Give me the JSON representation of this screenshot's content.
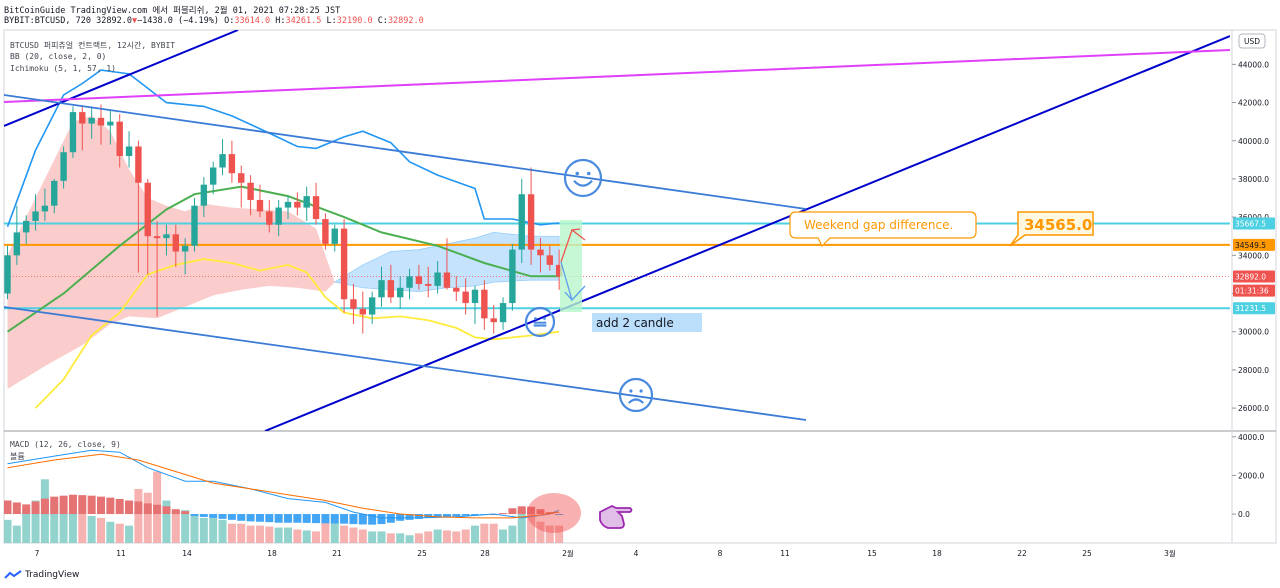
{
  "header": {
    "line1": "BitCoinGuide TradingView.com 에서 퍼블리쉬, 2월 01, 2021 07:28:25 JST",
    "line2_prefix": "BYBIT:BTCUSD, 720 32892.0",
    "line2_arrow": "▼",
    "line2_change": "−1438.0 (−4.19%)",
    "ohlc": [
      {
        "k": "O:",
        "v": "33614.0"
      },
      {
        "k": "H:",
        "v": "34261.5"
      },
      {
        "k": "L:",
        "v": "32190.0"
      },
      {
        "k": "C:",
        "v": "32892.0"
      }
    ]
  },
  "legend": {
    "symbol": "BTCUSD 퍼피츄얼 컨트랙트, 12시간, BYBIT",
    "bb": "BB (20, close, 2, 0)",
    "ichimoku": "Ichimoku (5, 1, 57, 1)",
    "macd": "MACD (12, 26, close, 9)",
    "volume": "볼륨"
  },
  "currency_button": "USD",
  "footer_brand": "TradingView",
  "annotations": {
    "weekend_gap": "Weekend gap difference.",
    "gap_value": "34565.0",
    "add_candle": "add 2 candle"
  },
  "colors": {
    "up": "#26a69a",
    "down": "#ef5350",
    "bb_basis": "#4caf50",
    "bb_upper_lower": "#2196f3",
    "ichimoku_lagging": "#ffeb3b",
    "cloud_red": "#f8bbbb",
    "cloud_blue": "#bbdefb",
    "trend_line": "#0000cc",
    "channel_line": "#3a7bd5",
    "magenta_line": "#e040fb",
    "level_cyan": "#4dd0e1",
    "level_orange": "#ff9800",
    "smiley": "#4a8bdf",
    "price_label": "#ef5350"
  },
  "chart_data": {
    "type": "candlestick",
    "symbol": "BYBIT:BTCUSD",
    "interval": "720",
    "price_axis": {
      "ticks": [
        "44000.0",
        "42000.0",
        "40000.0",
        "38000.0",
        "36000.0",
        "34000.0",
        "32000.0",
        "30000.0",
        "28000.0",
        "26000.0"
      ],
      "range": [
        24800,
        45800
      ]
    },
    "time_axis": {
      "ticks": [
        "7",
        "11",
        "14",
        "18",
        "21",
        "25",
        "28",
        "2월",
        "4",
        "8",
        "11",
        "15",
        "18",
        "22",
        "25",
        "3월"
      ]
    },
    "price_labels": [
      {
        "text": "35667.5",
        "value": 35667.5,
        "kind": "cyan"
      },
      {
        "text": "34549.5",
        "value": 34549.5,
        "kind": "orange"
      },
      {
        "text": "32892.0",
        "value": 32892.0,
        "kind": "last"
      },
      {
        "text": "01:31:36",
        "value": 32150,
        "kind": "countdown"
      },
      {
        "text": "31231.5",
        "value": 31231.5,
        "kind": "cyan"
      }
    ],
    "horizontal_levels": [
      {
        "value": 35667.5,
        "color": "cyan"
      },
      {
        "value": 34549.5,
        "color": "orange"
      },
      {
        "value": 31231.5,
        "color": "cyan"
      }
    ],
    "candles": [
      {
        "o": 32000,
        "h": 34500,
        "l": 31700,
        "c": 34000
      },
      {
        "o": 34000,
        "h": 36600,
        "l": 33500,
        "c": 35200
      },
      {
        "o": 35200,
        "h": 36100,
        "l": 34600,
        "c": 35800
      },
      {
        "o": 35800,
        "h": 37200,
        "l": 35300,
        "c": 36300
      },
      {
        "o": 36300,
        "h": 37500,
        "l": 35800,
        "c": 36600
      },
      {
        "o": 36600,
        "h": 38000,
        "l": 36200,
        "c": 37900
      },
      {
        "o": 37900,
        "h": 39700,
        "l": 37500,
        "c": 39400
      },
      {
        "o": 39400,
        "h": 41800,
        "l": 39100,
        "c": 41500
      },
      {
        "o": 41500,
        "h": 41800,
        "l": 39500,
        "c": 40900
      },
      {
        "o": 40900,
        "h": 41800,
        "l": 40100,
        "c": 41200
      },
      {
        "o": 41200,
        "h": 41900,
        "l": 39800,
        "c": 40800
      },
      {
        "o": 40800,
        "h": 41600,
        "l": 39800,
        "c": 41000
      },
      {
        "o": 41000,
        "h": 41400,
        "l": 38600,
        "c": 39200
      },
      {
        "o": 39200,
        "h": 40500,
        "l": 38600,
        "c": 39700
      },
      {
        "o": 39700,
        "h": 40000,
        "l": 33100,
        "c": 37800
      },
      {
        "o": 37800,
        "h": 38000,
        "l": 33000,
        "c": 35000
      },
      {
        "o": 35000,
        "h": 35800,
        "l": 30800,
        "c": 34900
      },
      {
        "o": 34900,
        "h": 35600,
        "l": 34000,
        "c": 35100
      },
      {
        "o": 35100,
        "h": 35600,
        "l": 33400,
        "c": 34200
      },
      {
        "o": 34200,
        "h": 34900,
        "l": 33000,
        "c": 34500
      },
      {
        "o": 34500,
        "h": 37000,
        "l": 34200,
        "c": 36600
      },
      {
        "o": 36600,
        "h": 38100,
        "l": 36000,
        "c": 37700
      },
      {
        "o": 37700,
        "h": 38900,
        "l": 37200,
        "c": 38600
      },
      {
        "o": 38600,
        "h": 40100,
        "l": 38200,
        "c": 39300
      },
      {
        "o": 39300,
        "h": 40000,
        "l": 37800,
        "c": 38300
      },
      {
        "o": 38300,
        "h": 38700,
        "l": 36500,
        "c": 37800
      },
      {
        "o": 37800,
        "h": 38200,
        "l": 36100,
        "c": 36900
      },
      {
        "o": 36900,
        "h": 37700,
        "l": 36000,
        "c": 36300
      },
      {
        "o": 36300,
        "h": 36900,
        "l": 35200,
        "c": 35600
      },
      {
        "o": 35600,
        "h": 36900,
        "l": 35000,
        "c": 36500
      },
      {
        "o": 36500,
        "h": 37100,
        "l": 35900,
        "c": 36800
      },
      {
        "o": 36800,
        "h": 37300,
        "l": 36100,
        "c": 36500
      },
      {
        "o": 36500,
        "h": 37600,
        "l": 35800,
        "c": 37100
      },
      {
        "o": 37100,
        "h": 37800,
        "l": 35600,
        "c": 35900
      },
      {
        "o": 35900,
        "h": 36200,
        "l": 34300,
        "c": 34600
      },
      {
        "o": 34600,
        "h": 35600,
        "l": 34200,
        "c": 35400
      },
      {
        "o": 35400,
        "h": 35900,
        "l": 31000,
        "c": 31700
      },
      {
        "o": 31700,
        "h": 32500,
        "l": 30400,
        "c": 31200
      },
      {
        "o": 31200,
        "h": 32100,
        "l": 29900,
        "c": 30900
      },
      {
        "o": 30900,
        "h": 32100,
        "l": 30400,
        "c": 31800
      },
      {
        "o": 31800,
        "h": 33400,
        "l": 31300,
        "c": 32700
      },
      {
        "o": 32700,
        "h": 33500,
        "l": 31500,
        "c": 31800
      },
      {
        "o": 31800,
        "h": 32900,
        "l": 31200,
        "c": 32300
      },
      {
        "o": 32300,
        "h": 33300,
        "l": 31700,
        "c": 32900
      },
      {
        "o": 32900,
        "h": 33500,
        "l": 32200,
        "c": 32500
      },
      {
        "o": 32500,
        "h": 33400,
        "l": 31800,
        "c": 32400
      },
      {
        "o": 32400,
        "h": 33700,
        "l": 32000,
        "c": 33100
      },
      {
        "o": 33100,
        "h": 34900,
        "l": 32200,
        "c": 32300
      },
      {
        "o": 32300,
        "h": 32900,
        "l": 31600,
        "c": 32100
      },
      {
        "o": 32100,
        "h": 32800,
        "l": 30900,
        "c": 31500
      },
      {
        "o": 31500,
        "h": 32400,
        "l": 30400,
        "c": 32200
      },
      {
        "o": 32200,
        "h": 32700,
        "l": 30100,
        "c": 30700
      },
      {
        "o": 30700,
        "h": 31400,
        "l": 29900,
        "c": 30500
      },
      {
        "o": 30500,
        "h": 31800,
        "l": 30100,
        "c": 31500
      },
      {
        "o": 31500,
        "h": 34600,
        "l": 31100,
        "c": 34300
      },
      {
        "o": 34300,
        "h": 38000,
        "l": 33600,
        "c": 37200
      },
      {
        "o": 37200,
        "h": 38600,
        "l": 33500,
        "c": 34300
      },
      {
        "o": 34300,
        "h": 34900,
        "l": 33100,
        "c": 34000
      },
      {
        "o": 34000,
        "h": 34500,
        "l": 33200,
        "c": 33500
      },
      {
        "o": 33500,
        "h": 34300,
        "l": 32190,
        "c": 32892
      }
    ],
    "lines": {
      "bb_basis": [
        [
          0,
          30000
        ],
        [
          6,
          32000
        ],
        [
          12,
          34500
        ],
        [
          17,
          36400
        ],
        [
          20,
          37200
        ],
        [
          25,
          37600
        ],
        [
          30,
          37100
        ],
        [
          36,
          36000
        ],
        [
          40,
          35200
        ],
        [
          46,
          34500
        ],
        [
          51,
          33600
        ],
        [
          56,
          32900
        ],
        [
          59,
          32900
        ]
      ],
      "bb_upper": [
        [
          0,
          35500
        ],
        [
          3,
          39500
        ],
        [
          6,
          42400
        ],
        [
          8,
          43000
        ],
        [
          10,
          43700
        ],
        [
          13,
          43500
        ],
        [
          17,
          42000
        ],
        [
          21,
          41800
        ],
        [
          24,
          41300
        ],
        [
          28,
          40400
        ],
        [
          31,
          39700
        ],
        [
          33,
          39600
        ],
        [
          36,
          40200
        ],
        [
          38,
          40500
        ],
        [
          41,
          39900
        ],
        [
          43,
          38900
        ],
        [
          46,
          38200
        ],
        [
          50,
          37500
        ],
        [
          51,
          35900
        ],
        [
          54,
          35900
        ],
        [
          57,
          35600
        ],
        [
          59,
          35700
        ]
      ],
      "ichimoku_lagging": [
        [
          3,
          26000
        ],
        [
          6,
          27500
        ],
        [
          9,
          29800
        ],
        [
          12,
          31000
        ],
        [
          15,
          33000
        ],
        [
          18,
          33500
        ],
        [
          21,
          33800
        ],
        [
          24,
          33600
        ],
        [
          27,
          33200
        ],
        [
          30,
          33500
        ],
        [
          32,
          33100
        ],
        [
          34,
          31800
        ],
        [
          36,
          31000
        ],
        [
          39,
          30700
        ],
        [
          42,
          30800
        ],
        [
          45,
          30600
        ],
        [
          48,
          30200
        ],
        [
          50,
          29700
        ],
        [
          52,
          29600
        ],
        [
          56,
          29800
        ],
        [
          59,
          30000
        ]
      ],
      "cloud_red_upper": [
        [
          0,
          34000
        ],
        [
          3,
          37000
        ],
        [
          5,
          39000
        ],
        [
          7,
          41000
        ],
        [
          9,
          41300
        ],
        [
          11,
          40500
        ],
        [
          13,
          38500
        ],
        [
          15,
          37000
        ],
        [
          17,
          36600
        ],
        [
          19,
          36300
        ],
        [
          21,
          36700
        ],
        [
          24,
          36500
        ],
        [
          27,
          36400
        ],
        [
          30,
          36300
        ],
        [
          33,
          35400
        ],
        [
          34,
          34000
        ],
        [
          35,
          32600
        ]
      ],
      "cloud_red_lower": [
        [
          0,
          27000
        ],
        [
          4,
          28200
        ],
        [
          8,
          29300
        ],
        [
          11,
          30400
        ],
        [
          13,
          30800
        ],
        [
          16,
          30700
        ],
        [
          19,
          31300
        ],
        [
          22,
          31900
        ],
        [
          25,
          32200
        ],
        [
          28,
          32400
        ],
        [
          31,
          32300
        ],
        [
          34,
          32100
        ],
        [
          35,
          32600
        ]
      ],
      "cloud_blue_upper": [
        [
          35,
          32600
        ],
        [
          38,
          33500
        ],
        [
          41,
          34200
        ],
        [
          44,
          34300
        ],
        [
          47,
          34600
        ],
        [
          50,
          34900
        ],
        [
          52,
          35200
        ],
        [
          56,
          35000
        ],
        [
          59,
          35000
        ]
      ],
      "cloud_blue_lower": [
        [
          35,
          32600
        ],
        [
          38,
          32300
        ],
        [
          41,
          32200
        ],
        [
          44,
          32100
        ],
        [
          47,
          32300
        ],
        [
          50,
          32400
        ],
        [
          52,
          32600
        ],
        [
          56,
          32700
        ],
        [
          59,
          32700
        ]
      ]
    },
    "macd": {
      "axis_ticks": [
        "4000.0",
        "2000.0",
        "0.0"
      ],
      "range": [
        -1500,
        4300
      ],
      "histogram": [
        700,
        600,
        500,
        650,
        800,
        900,
        950,
        1000,
        980,
        950,
        900,
        850,
        780,
        700,
        650,
        550,
        480,
        400,
        250,
        150,
        -100,
        -150,
        -200,
        -250,
        -300,
        -350,
        -380,
        -400,
        -420,
        -450,
        -450,
        -450,
        -460,
        -470,
        -480,
        -490,
        -500,
        -520,
        -540,
        -550,
        -520,
        -450,
        -350,
        -300,
        -250,
        -200,
        -180,
        -150,
        -120,
        -90,
        -60,
        -30,
        0,
        50,
        300,
        400,
        380,
        250,
        100,
        -50
      ],
      "volume": [
        1200,
        900,
        1800,
        2200,
        3300,
        2100,
        1800,
        1600,
        1500,
        1400,
        1300,
        1100,
        1000,
        900,
        2800,
        2600,
        3700,
        2200,
        1600,
        1700,
        1500,
        1300,
        1300,
        1200,
        1000,
        1000,
        900,
        900,
        850,
        800,
        800,
        700,
        650,
        600,
        1300,
        1100,
        900,
        800,
        700,
        600,
        600,
        500,
        500,
        400,
        500,
        600,
        700,
        650,
        600,
        700,
        900,
        1000,
        1000,
        700,
        900,
        1800,
        1500,
        1100,
        900,
        900
      ],
      "macd_line": [
        [
          0,
          2600
        ],
        [
          5,
          3000
        ],
        [
          9,
          3300
        ],
        [
          12,
          3200
        ],
        [
          15,
          2400
        ],
        [
          19,
          1700
        ],
        [
          22,
          1700
        ],
        [
          26,
          1300
        ],
        [
          30,
          800
        ],
        [
          34,
          600
        ],
        [
          37,
          100
        ],
        [
          40,
          -200
        ],
        [
          44,
          -200
        ],
        [
          48,
          -150
        ],
        [
          52,
          0
        ],
        [
          55,
          -200
        ],
        [
          58,
          0
        ],
        [
          59,
          200
        ]
      ],
      "signal_line": [
        [
          0,
          2400
        ],
        [
          5,
          2800
        ],
        [
          10,
          3100
        ],
        [
          14,
          2800
        ],
        [
          18,
          2200
        ],
        [
          22,
          1600
        ],
        [
          26,
          1300
        ],
        [
          30,
          1000
        ],
        [
          34,
          700
        ],
        [
          38,
          300
        ],
        [
          42,
          0
        ],
        [
          46,
          -150
        ],
        [
          50,
          -200
        ],
        [
          54,
          -200
        ],
        [
          57,
          -50
        ],
        [
          59,
          100
        ]
      ]
    }
  }
}
